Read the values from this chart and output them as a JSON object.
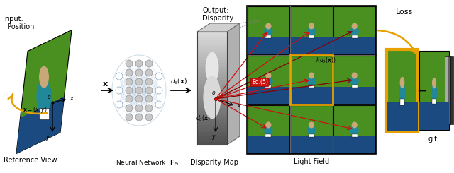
{
  "bg_color": "#ffffff",
  "ref_view_label": "Reference View",
  "input_label": "Input:\n  Position",
  "nn_label": "Neural Network: $\\mathbf{F}_{\\Theta}$",
  "output_label": "Output:\nDisparity",
  "disparity_map_label": "Disparity Map",
  "light_field_label": "Light Field",
  "loss_label": "Loss",
  "gt_label": "g.t.",
  "x_label": "$\\mathbf{x}$",
  "d_theta_label": "$d_{\\theta}(\\mathbf{x})$",
  "eq_label": "Eq.(5)",
  "l_label": "$l(d_{\\theta}(\\mathbf{x}))$",
  "green_color": "#4a9020",
  "blue_color": "#1a4a80",
  "skin_color": "#c8a878",
  "teal_color": "#208898",
  "orange_color": "#e6a000",
  "red_color": "#cc1010",
  "dark_red_color": "#880000"
}
